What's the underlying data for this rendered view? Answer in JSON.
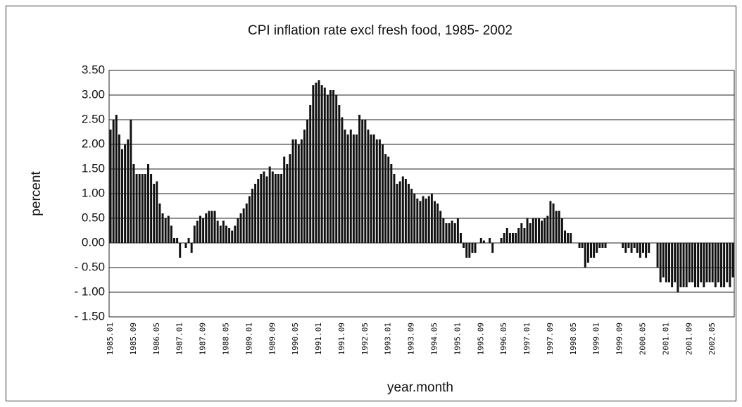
{
  "chart_data": {
    "type": "bar",
    "title": "CPI inflation rate excl fresh food, 1985- 2002",
    "x_label": "year.month",
    "y_label": "percent",
    "color": "#111111",
    "grid": true,
    "ylim": [
      -1.5,
      3.5
    ],
    "yticks": [
      {
        "value": -1.5,
        "label": "- 1.50"
      },
      {
        "value": -1,
        "label": "- 1.00"
      },
      {
        "value": -0.5,
        "label": "- 0.50"
      },
      {
        "value": 0,
        "label": "0.00"
      },
      {
        "value": 0.5,
        "label": "0.50"
      },
      {
        "value": 1,
        "label": "1.00"
      },
      {
        "value": 1.5,
        "label": "1.50"
      },
      {
        "value": 2,
        "label": "2.00"
      },
      {
        "value": 2.5,
        "label": "2.50"
      },
      {
        "value": 3,
        "label": "3.00"
      },
      {
        "value": 3.5,
        "label": "3.50"
      }
    ],
    "categories": [
      "1985.01",
      null,
      null,
      null,
      null,
      null,
      null,
      null,
      "1985.09",
      null,
      null,
      null,
      null,
      null,
      null,
      null,
      "1986.05",
      null,
      null,
      null,
      null,
      null,
      null,
      null,
      "1987.01",
      null,
      null,
      null,
      null,
      null,
      null,
      null,
      "1987.09",
      null,
      null,
      null,
      null,
      null,
      null,
      null,
      "1988.05",
      null,
      null,
      null,
      null,
      null,
      null,
      null,
      "1989.01",
      null,
      null,
      null,
      null,
      null,
      null,
      null,
      "1989.09",
      null,
      null,
      null,
      null,
      null,
      null,
      null,
      "1990.05",
      null,
      null,
      null,
      null,
      null,
      null,
      null,
      "1991.01",
      null,
      null,
      null,
      null,
      null,
      null,
      null,
      "1991.09",
      null,
      null,
      null,
      null,
      null,
      null,
      null,
      "1992.05",
      null,
      null,
      null,
      null,
      null,
      null,
      null,
      "1993.01",
      null,
      null,
      null,
      null,
      null,
      null,
      null,
      "1993.09",
      null,
      null,
      null,
      null,
      null,
      null,
      null,
      "1994.05",
      null,
      null,
      null,
      null,
      null,
      null,
      null,
      "1995.01",
      null,
      null,
      null,
      null,
      null,
      null,
      null,
      "1995.09",
      null,
      null,
      null,
      null,
      null,
      null,
      null,
      "1996.05",
      null,
      null,
      null,
      null,
      null,
      null,
      null,
      "1997.01",
      null,
      null,
      null,
      null,
      null,
      null,
      null,
      "1997.09",
      null,
      null,
      null,
      null,
      null,
      null,
      null,
      "1998.05",
      null,
      null,
      null,
      null,
      null,
      null,
      null,
      "1999.01",
      null,
      null,
      null,
      null,
      null,
      null,
      null,
      "1999.09",
      null,
      null,
      null,
      null,
      null,
      null,
      null,
      "2000.05",
      null,
      null,
      null,
      null,
      null,
      null,
      null,
      "2001.01",
      null,
      null,
      null,
      null,
      null,
      null,
      null,
      "2001.09",
      null,
      null,
      null,
      null,
      null,
      null,
      null,
      "2002.05",
      null,
      null,
      null,
      null,
      null,
      null,
      null
    ],
    "values": [
      2.3,
      2.5,
      2.6,
      2.2,
      1.9,
      2.0,
      2.1,
      2.5,
      1.6,
      1.4,
      1.4,
      1.4,
      1.4,
      1.6,
      1.4,
      1.2,
      1.25,
      0.8,
      0.6,
      0.5,
      0.55,
      0.35,
      0.1,
      0.1,
      -0.3,
      0.0,
      -0.1,
      0.1,
      -0.2,
      0.35,
      0.45,
      0.55,
      0.5,
      0.6,
      0.65,
      0.65,
      0.65,
      0.45,
      0.35,
      0.45,
      0.35,
      0.3,
      0.25,
      0.35,
      0.5,
      0.6,
      0.7,
      0.8,
      0.95,
      1.1,
      1.2,
      1.3,
      1.4,
      1.45,
      1.35,
      1.55,
      1.45,
      1.4,
      1.4,
      1.4,
      1.75,
      1.6,
      1.8,
      2.1,
      2.1,
      2.0,
      2.1,
      2.3,
      2.5,
      2.8,
      3.2,
      3.25,
      3.3,
      3.2,
      3.15,
      3.0,
      3.1,
      3.1,
      3.0,
      2.8,
      2.55,
      2.3,
      2.2,
      2.3,
      2.2,
      2.2,
      2.6,
      2.5,
      2.5,
      2.3,
      2.2,
      2.2,
      2.1,
      2.1,
      2.0,
      1.8,
      1.75,
      1.6,
      1.4,
      1.2,
      1.25,
      1.35,
      1.3,
      1.2,
      1.1,
      1.0,
      0.9,
      0.85,
      0.95,
      0.9,
      0.95,
      1.0,
      0.85,
      0.8,
      0.65,
      0.5,
      0.4,
      0.4,
      0.45,
      0.4,
      0.5,
      0.2,
      -0.1,
      -0.3,
      -0.3,
      -0.2,
      -0.2,
      0.0,
      0.1,
      0.05,
      0.0,
      0.1,
      -0.2,
      0.0,
      0.0,
      0.1,
      0.2,
      0.3,
      0.2,
      0.2,
      0.2,
      0.3,
      0.4,
      0.3,
      0.5,
      0.4,
      0.5,
      0.5,
      0.5,
      0.45,
      0.5,
      0.55,
      0.85,
      0.8,
      0.65,
      0.65,
      0.5,
      0.25,
      0.2,
      0.2,
      0.0,
      0.0,
      -0.1,
      -0.1,
      -0.5,
      -0.4,
      -0.3,
      -0.3,
      -0.2,
      -0.1,
      -0.1,
      -0.1,
      0.0,
      0.0,
      0.0,
      0.0,
      0.0,
      -0.1,
      -0.2,
      -0.1,
      -0.2,
      -0.1,
      -0.2,
      -0.3,
      -0.2,
      -0.3,
      -0.2,
      0.0,
      0.0,
      -0.5,
      -0.8,
      -0.7,
      -0.8,
      -0.8,
      -0.9,
      -0.8,
      -1.0,
      -0.9,
      -0.9,
      -0.9,
      -0.8,
      -0.8,
      -0.9,
      -0.9,
      -0.8,
      -0.9,
      -0.8,
      -0.8,
      -0.8,
      -0.9,
      -0.8,
      -0.9,
      -0.9,
      -0.8,
      -0.9,
      -0.7
    ]
  }
}
